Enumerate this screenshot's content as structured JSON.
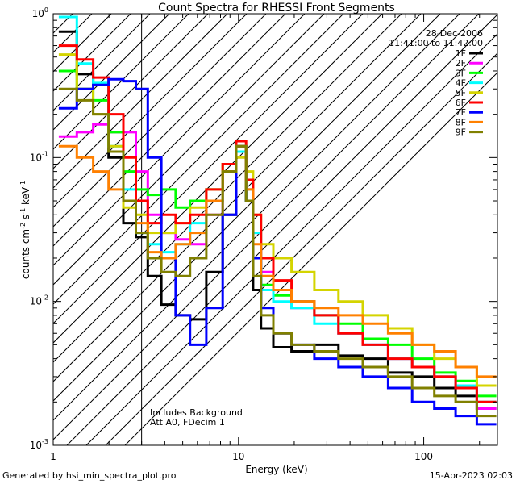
{
  "chart_data": {
    "type": "line",
    "title": "Count Spectra for RHESSI Front Segments",
    "xlabel": "Energy (keV)",
    "ylabel": "counts cm-2 s-1 keV-1",
    "xscale": "log",
    "yscale": "log",
    "xlim": [
      1.0,
      250
    ],
    "ylim": [
      0.001,
      1.0
    ],
    "x_ticks": [
      {
        "value": 1,
        "label": "1"
      },
      {
        "value": 10,
        "label": "10"
      },
      {
        "value": 100,
        "label": "100"
      }
    ],
    "y_ticks": [
      {
        "value": 1.0,
        "mant": "10",
        "exp": "0"
      },
      {
        "value": 0.1,
        "mant": "10",
        "exp": "-1"
      },
      {
        "value": 0.01,
        "mant": "10",
        "exp": "-2"
      },
      {
        "value": 0.001,
        "mant": "10",
        "exp": "-3"
      }
    ],
    "shaded_region": {
      "xmin": 1.0,
      "xmax": 3.0,
      "style": "diagonal hatch",
      "marks": "attenuator low-energy cutoff"
    },
    "legend": {
      "placement": "top-right",
      "date": "28-Dec-2006",
      "time_range": "11:41:00 to 11:42:00",
      "entries": [
        {
          "label": "1F",
          "color": "#000000"
        },
        {
          "label": "2F",
          "color": "#ff00ff"
        },
        {
          "label": "3F",
          "color": "#00ff00"
        },
        {
          "label": "4F",
          "color": "#00ffff"
        },
        {
          "label": "5F",
          "color": "#d4d400"
        },
        {
          "label": "6F",
          "color": "#ff0000"
        },
        {
          "label": "7F",
          "color": "#0000ff"
        },
        {
          "label": "8F",
          "color": "#ff8000"
        },
        {
          "label": "9F",
          "color": "#808000"
        }
      ]
    },
    "annotations": [
      "Includes Background",
      "Att A0, FDecim 1"
    ],
    "series": [
      {
        "name": "1F",
        "color": "#000000",
        "points": [
          [
            1.2,
            0.75
          ],
          [
            1.5,
            0.38
          ],
          [
            1.8,
            0.32
          ],
          [
            2.2,
            0.1
          ],
          [
            2.6,
            0.035
          ],
          [
            3.0,
            0.028
          ],
          [
            3.5,
            0.015
          ],
          [
            4.2,
            0.0095
          ],
          [
            5.0,
            0.008
          ],
          [
            6.0,
            0.0075
          ],
          [
            7.5,
            0.016
          ],
          [
            9.0,
            0.04
          ],
          [
            10.5,
            0.11
          ],
          [
            11.5,
            0.05
          ],
          [
            12.5,
            0.012
          ],
          [
            14,
            0.0065
          ],
          [
            17,
            0.0048
          ],
          [
            22,
            0.0045
          ],
          [
            30,
            0.005
          ],
          [
            40,
            0.0042
          ],
          [
            55,
            0.004
          ],
          [
            75,
            0.0032
          ],
          [
            100,
            0.003
          ],
          [
            130,
            0.0025
          ],
          [
            170,
            0.0022
          ],
          [
            220,
            0.0018
          ]
        ]
      },
      {
        "name": "2F",
        "color": "#ff00ff",
        "points": [
          [
            1.2,
            0.14
          ],
          [
            1.5,
            0.15
          ],
          [
            1.8,
            0.17
          ],
          [
            2.2,
            0.15
          ],
          [
            2.6,
            0.15
          ],
          [
            3.0,
            0.08
          ],
          [
            3.5,
            0.04
          ],
          [
            4.2,
            0.03
          ],
          [
            5.0,
            0.027
          ],
          [
            6.0,
            0.025
          ],
          [
            7.5,
            0.04
          ],
          [
            9.0,
            0.08
          ],
          [
            10.5,
            0.12
          ],
          [
            11.5,
            0.06
          ],
          [
            12.5,
            0.03
          ],
          [
            14,
            0.016
          ],
          [
            17,
            0.012
          ],
          [
            22,
            0.009
          ],
          [
            30,
            0.008
          ],
          [
            40,
            0.006
          ],
          [
            55,
            0.005
          ],
          [
            75,
            0.004
          ],
          [
            100,
            0.0035
          ],
          [
            130,
            0.003
          ],
          [
            170,
            0.0025
          ],
          [
            220,
            0.0018
          ]
        ]
      },
      {
        "name": "3F",
        "color": "#00ff00",
        "points": [
          [
            1.2,
            0.4
          ],
          [
            1.5,
            0.3
          ],
          [
            1.8,
            0.25
          ],
          [
            2.2,
            0.15
          ],
          [
            2.6,
            0.08
          ],
          [
            3.0,
            0.06
          ],
          [
            3.5,
            0.055
          ],
          [
            4.2,
            0.06
          ],
          [
            5.0,
            0.045
          ],
          [
            6.0,
            0.05
          ],
          [
            7.5,
            0.06
          ],
          [
            9.0,
            0.09
          ],
          [
            10.5,
            0.12
          ],
          [
            11.5,
            0.05
          ],
          [
            12.5,
            0.02
          ],
          [
            14,
            0.013
          ],
          [
            17,
            0.011
          ],
          [
            22,
            0.01
          ],
          [
            30,
            0.008
          ],
          [
            40,
            0.007
          ],
          [
            55,
            0.0055
          ],
          [
            75,
            0.005
          ],
          [
            100,
            0.004
          ],
          [
            130,
            0.0032
          ],
          [
            170,
            0.0028
          ],
          [
            220,
            0.0022
          ]
        ]
      },
      {
        "name": "4F",
        "color": "#00ffff",
        "points": [
          [
            1.2,
            0.95
          ],
          [
            1.5,
            0.45
          ],
          [
            1.8,
            0.33
          ],
          [
            2.2,
            0.12
          ],
          [
            2.6,
            0.06
          ],
          [
            3.0,
            0.03
          ],
          [
            3.5,
            0.025
          ],
          [
            4.2,
            0.022
          ],
          [
            5.0,
            0.025
          ],
          [
            6.0,
            0.035
          ],
          [
            7.5,
            0.05
          ],
          [
            9.0,
            0.08
          ],
          [
            10.5,
            0.11
          ],
          [
            11.5,
            0.06
          ],
          [
            12.5,
            0.03
          ],
          [
            14,
            0.012
          ],
          [
            17,
            0.01
          ],
          [
            22,
            0.009
          ],
          [
            30,
            0.007
          ],
          [
            40,
            0.006
          ],
          [
            55,
            0.005
          ],
          [
            75,
            0.004
          ],
          [
            100,
            0.0035
          ],
          [
            130,
            0.003
          ],
          [
            170,
            0.0026
          ],
          [
            220,
            0.002
          ]
        ]
      },
      {
        "name": "5F",
        "color": "#d4d400",
        "points": [
          [
            1.2,
            0.52
          ],
          [
            1.5,
            0.3
          ],
          [
            1.8,
            0.2
          ],
          [
            2.2,
            0.12
          ],
          [
            2.6,
            0.045
          ],
          [
            3.0,
            0.04
          ],
          [
            3.5,
            0.03
          ],
          [
            4.2,
            0.03
          ],
          [
            5.0,
            0.035
          ],
          [
            6.0,
            0.045
          ],
          [
            7.5,
            0.06
          ],
          [
            9.0,
            0.09
          ],
          [
            10.5,
            0.1
          ],
          [
            11.5,
            0.08
          ],
          [
            12.5,
            0.04
          ],
          [
            14,
            0.025
          ],
          [
            17,
            0.02
          ],
          [
            22,
            0.016
          ],
          [
            30,
            0.012
          ],
          [
            40,
            0.01
          ],
          [
            55,
            0.008
          ],
          [
            75,
            0.0065
          ],
          [
            100,
            0.005
          ],
          [
            130,
            0.004
          ],
          [
            170,
            0.0035
          ],
          [
            220,
            0.0026
          ]
        ]
      },
      {
        "name": "6F",
        "color": "#ff0000",
        "points": [
          [
            1.2,
            0.6
          ],
          [
            1.5,
            0.48
          ],
          [
            1.8,
            0.36
          ],
          [
            2.2,
            0.2
          ],
          [
            2.6,
            0.1
          ],
          [
            3.0,
            0.05
          ],
          [
            3.5,
            0.035
          ],
          [
            4.2,
            0.04
          ],
          [
            5.0,
            0.035
          ],
          [
            6.0,
            0.04
          ],
          [
            7.5,
            0.06
          ],
          [
            9.0,
            0.09
          ],
          [
            10.5,
            0.13
          ],
          [
            11.5,
            0.07
          ],
          [
            12.5,
            0.04
          ],
          [
            14,
            0.02
          ],
          [
            17,
            0.014
          ],
          [
            22,
            0.01
          ],
          [
            30,
            0.008
          ],
          [
            40,
            0.006
          ],
          [
            55,
            0.005
          ],
          [
            75,
            0.004
          ],
          [
            100,
            0.0035
          ],
          [
            130,
            0.003
          ],
          [
            170,
            0.0025
          ],
          [
            220,
            0.002
          ]
        ]
      },
      {
        "name": "7F",
        "color": "#0000ff",
        "points": [
          [
            1.2,
            0.22
          ],
          [
            1.5,
            0.3
          ],
          [
            1.8,
            0.32
          ],
          [
            2.2,
            0.35
          ],
          [
            2.6,
            0.34
          ],
          [
            3.0,
            0.3
          ],
          [
            3.5,
            0.1
          ],
          [
            4.2,
            0.02
          ],
          [
            5.0,
            0.008
          ],
          [
            6.0,
            0.005
          ],
          [
            7.5,
            0.009
          ],
          [
            9.0,
            0.04
          ],
          [
            10.5,
            0.12
          ],
          [
            11.5,
            0.05
          ],
          [
            12.5,
            0.02
          ],
          [
            14,
            0.009
          ],
          [
            17,
            0.006
          ],
          [
            22,
            0.005
          ],
          [
            30,
            0.004
          ],
          [
            40,
            0.0035
          ],
          [
            55,
            0.003
          ],
          [
            75,
            0.0025
          ],
          [
            100,
            0.002
          ],
          [
            130,
            0.0018
          ],
          [
            170,
            0.0016
          ],
          [
            220,
            0.0014
          ]
        ]
      },
      {
        "name": "8F",
        "color": "#ff8000",
        "points": [
          [
            1.2,
            0.12
          ],
          [
            1.5,
            0.1
          ],
          [
            1.8,
            0.08
          ],
          [
            2.2,
            0.06
          ],
          [
            2.6,
            0.05
          ],
          [
            3.0,
            0.035
          ],
          [
            3.5,
            0.022
          ],
          [
            4.2,
            0.02
          ],
          [
            5.0,
            0.025
          ],
          [
            6.0,
            0.03
          ],
          [
            7.5,
            0.05
          ],
          [
            9.0,
            0.08
          ],
          [
            10.5,
            0.12
          ],
          [
            11.5,
            0.06
          ],
          [
            12.5,
            0.025
          ],
          [
            14,
            0.015
          ],
          [
            17,
            0.012
          ],
          [
            22,
            0.01
          ],
          [
            30,
            0.009
          ],
          [
            40,
            0.008
          ],
          [
            55,
            0.007
          ],
          [
            75,
            0.006
          ],
          [
            100,
            0.005
          ],
          [
            130,
            0.0045
          ],
          [
            170,
            0.0035
          ],
          [
            220,
            0.003
          ]
        ]
      },
      {
        "name": "9F",
        "color": "#808000",
        "points": [
          [
            1.2,
            0.3
          ],
          [
            1.5,
            0.25
          ],
          [
            1.8,
            0.2
          ],
          [
            2.2,
            0.11
          ],
          [
            2.6,
            0.05
          ],
          [
            3.0,
            0.03
          ],
          [
            3.5,
            0.02
          ],
          [
            4.2,
            0.016
          ],
          [
            5.0,
            0.015
          ],
          [
            6.0,
            0.02
          ],
          [
            7.5,
            0.04
          ],
          [
            9.0,
            0.08
          ],
          [
            10.5,
            0.12
          ],
          [
            11.5,
            0.05
          ],
          [
            12.5,
            0.015
          ],
          [
            14,
            0.008
          ],
          [
            17,
            0.006
          ],
          [
            22,
            0.005
          ],
          [
            30,
            0.0045
          ],
          [
            40,
            0.004
          ],
          [
            55,
            0.0035
          ],
          [
            75,
            0.003
          ],
          [
            100,
            0.0025
          ],
          [
            130,
            0.0022
          ],
          [
            170,
            0.002
          ],
          [
            220,
            0.0016
          ]
        ]
      }
    ]
  },
  "footer": {
    "generated_by": "Generated by hsi_min_spectra_plot.pro",
    "timestamp": "15-Apr-2023 02:03"
  }
}
